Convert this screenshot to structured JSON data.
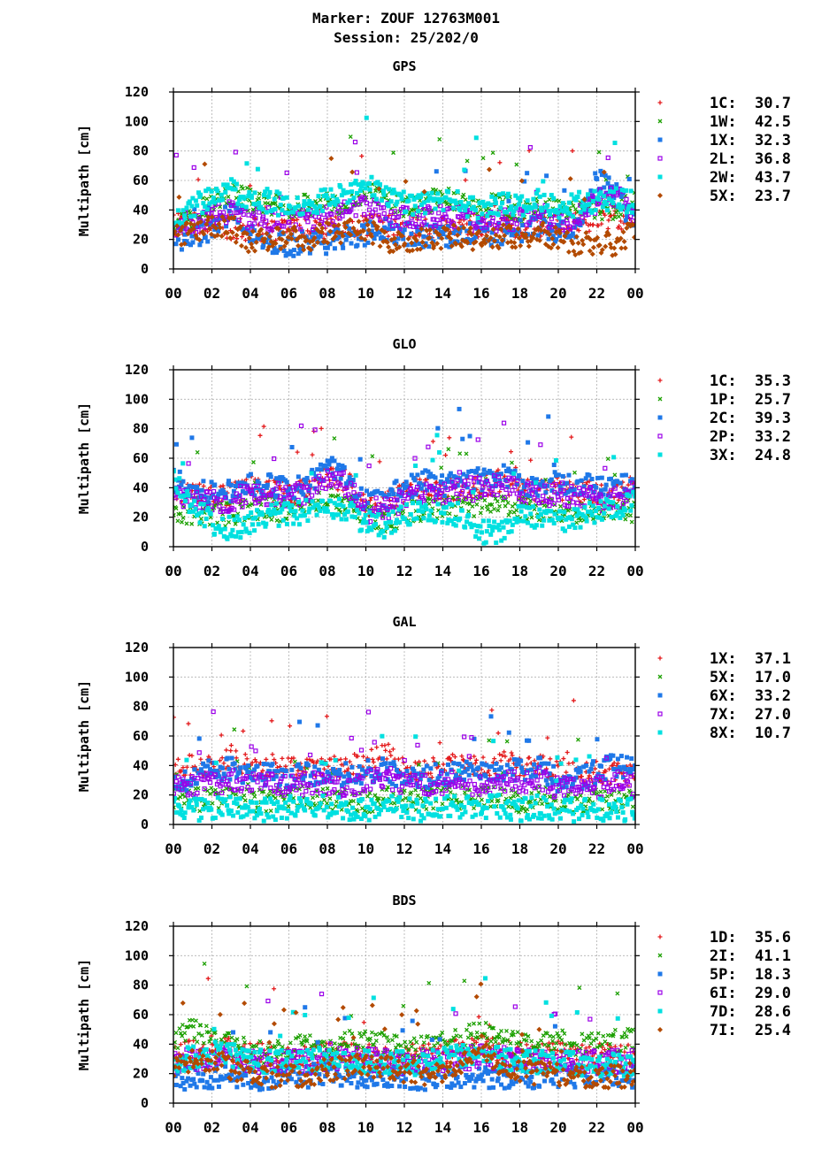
{
  "page": {
    "title_line1": "Marker: ZOUF 12763M001",
    "title_line2": "Session: 25/202/0"
  },
  "chart_data": [
    {
      "type": "scatter",
      "title": "GPS",
      "ylabel": "Multipath [cm]",
      "xlabel": "",
      "xlim": [
        0,
        24
      ],
      "ylim": [
        0,
        120
      ],
      "x_ticks": [
        "00",
        "02",
        "04",
        "06",
        "08",
        "10",
        "12",
        "14",
        "16",
        "18",
        "20",
        "22",
        "00"
      ],
      "y_ticks": [
        0,
        20,
        40,
        60,
        80,
        100,
        120
      ],
      "grid": true,
      "legend_position": "right",
      "series": [
        {
          "name": "1C",
          "legend_value": "30.7",
          "color": "#e41a1c",
          "marker": "+",
          "base": [
            30,
            30,
            30,
            28,
            27,
            27,
            28,
            28,
            28,
            29,
            30,
            30,
            29,
            28,
            30,
            30,
            29,
            28,
            30,
            30,
            31,
            30,
            34,
            35,
            34
          ]
        },
        {
          "name": "1W",
          "legend_value": "42.5",
          "color": "#1ca000",
          "marker": "x",
          "base": [
            28,
            34,
            46,
            52,
            46,
            44,
            42,
            44,
            46,
            44,
            52,
            46,
            42,
            44,
            48,
            44,
            42,
            44,
            40,
            42,
            40,
            40,
            40,
            42,
            44
          ]
        },
        {
          "name": "1X",
          "legend_value": "32.3",
          "color": "#1f78e8",
          "marker": "square",
          "base": [
            22,
            20,
            26,
            40,
            22,
            18,
            16,
            18,
            18,
            22,
            24,
            26,
            24,
            22,
            22,
            22,
            24,
            24,
            26,
            30,
            24,
            30,
            60,
            52,
            30
          ]
        },
        {
          "name": "2L",
          "legend_value": "36.8",
          "color": "#9b00e8",
          "marker": "open-square",
          "base": [
            30,
            32,
            36,
            38,
            34,
            34,
            34,
            34,
            36,
            38,
            42,
            38,
            34,
            34,
            36,
            34,
            32,
            34,
            34,
            38,
            32,
            36,
            46,
            50,
            38
          ]
        },
        {
          "name": "2W",
          "legend_value": "43.7",
          "color": "#00e0e0",
          "marker": "square",
          "base": [
            32,
            42,
            50,
            54,
            48,
            46,
            42,
            44,
            48,
            50,
            56,
            52,
            44,
            44,
            48,
            44,
            42,
            44,
            42,
            46,
            42,
            44,
            46,
            48,
            44
          ]
        },
        {
          "name": "5X",
          "legend_value": "23.7",
          "color": "#b34a00",
          "marker": "diamond",
          "base": [
            22,
            24,
            30,
            28,
            18,
            20,
            22,
            20,
            24,
            26,
            26,
            20,
            18,
            20,
            22,
            22,
            20,
            22,
            22,
            24,
            20,
            16,
            18,
            16,
            28
          ]
        }
      ]
    },
    {
      "type": "scatter",
      "title": "GLO",
      "ylabel": "Multipath [cm]",
      "xlabel": "",
      "xlim": [
        0,
        24
      ],
      "ylim": [
        0,
        120
      ],
      "x_ticks": [
        "00",
        "02",
        "04",
        "06",
        "08",
        "10",
        "12",
        "14",
        "16",
        "18",
        "20",
        "22",
        "00"
      ],
      "y_ticks": [
        0,
        20,
        40,
        60,
        80,
        100,
        120
      ],
      "grid": true,
      "legend_position": "right",
      "series": [
        {
          "name": "1C",
          "legend_value": "35.3",
          "color": "#e41a1c",
          "marker": "+",
          "base": [
            40,
            36,
            34,
            36,
            40,
            38,
            36,
            38,
            48,
            44,
            28,
            30,
            36,
            40,
            38,
            40,
            42,
            44,
            40,
            38,
            40,
            38,
            36,
            36,
            40
          ]
        },
        {
          "name": "1P",
          "legend_value": "25.7",
          "color": "#1ca000",
          "marker": "x",
          "base": [
            24,
            22,
            22,
            22,
            26,
            26,
            24,
            26,
            34,
            30,
            20,
            18,
            22,
            26,
            26,
            26,
            28,
            28,
            26,
            26,
            24,
            22,
            24,
            24,
            24
          ]
        },
        {
          "name": "2C",
          "legend_value": "39.3",
          "color": "#1f78e8",
          "marker": "square",
          "base": [
            46,
            40,
            36,
            38,
            42,
            42,
            40,
            42,
            54,
            48,
            30,
            32,
            40,
            44,
            42,
            44,
            46,
            48,
            44,
            40,
            44,
            42,
            40,
            40,
            44
          ]
        },
        {
          "name": "2P",
          "legend_value": "33.2",
          "color": "#9b00e8",
          "marker": "open-square",
          "base": [
            36,
            32,
            30,
            32,
            36,
            36,
            34,
            36,
            48,
            42,
            24,
            26,
            32,
            38,
            36,
            38,
            40,
            42,
            38,
            34,
            36,
            34,
            32,
            32,
            36
          ]
        },
        {
          "name": "3X",
          "legend_value": "24.8",
          "color": "#00e0e0",
          "marker": "square",
          "base": [
            44,
            28,
            16,
            12,
            16,
            22,
            22,
            24,
            26,
            24,
            16,
            14,
            22,
            26,
            22,
            22,
            10,
            10,
            22,
            20,
            16,
            20,
            24,
            26,
            32
          ]
        }
      ]
    },
    {
      "type": "scatter",
      "title": "GAL",
      "ylabel": "Multipath [cm]",
      "xlabel": "",
      "xlim": [
        0,
        24
      ],
      "ylim": [
        0,
        120
      ],
      "x_ticks": [
        "00",
        "02",
        "04",
        "06",
        "08",
        "10",
        "12",
        "14",
        "16",
        "18",
        "20",
        "22",
        "00"
      ],
      "y_ticks": [
        0,
        20,
        40,
        60,
        80,
        100,
        120
      ],
      "grid": true,
      "legend_position": "right",
      "series": [
        {
          "name": "1X",
          "legend_value": "37.1",
          "color": "#e41a1c",
          "marker": "+",
          "base": [
            36,
            40,
            40,
            46,
            38,
            40,
            38,
            40,
            40,
            40,
            40,
            50,
            36,
            38,
            40,
            40,
            40,
            42,
            40,
            40,
            38,
            36,
            36,
            34,
            32
          ]
        },
        {
          "name": "5X",
          "legend_value": "17.0",
          "color": "#1ca000",
          "marker": "x",
          "base": [
            16,
            16,
            18,
            18,
            16,
            16,
            18,
            18,
            18,
            16,
            16,
            18,
            16,
            16,
            18,
            18,
            18,
            18,
            16,
            18,
            16,
            16,
            16,
            16,
            16
          ]
        },
        {
          "name": "6X",
          "legend_value": "33.2",
          "color": "#1f78e8",
          "marker": "square",
          "base": [
            28,
            32,
            36,
            38,
            32,
            34,
            32,
            34,
            36,
            34,
            36,
            38,
            30,
            32,
            34,
            36,
            36,
            38,
            36,
            38,
            30,
            30,
            36,
            40,
            36
          ]
        },
        {
          "name": "7X",
          "legend_value": "27.0",
          "color": "#9b00e8",
          "marker": "open-square",
          "base": [
            24,
            26,
            28,
            30,
            26,
            28,
            26,
            28,
            28,
            26,
            28,
            32,
            26,
            26,
            28,
            28,
            28,
            30,
            28,
            32,
            24,
            24,
            26,
            28,
            26
          ]
        },
        {
          "name": "8X",
          "legend_value": "10.7",
          "color": "#00e0e0",
          "marker": "square",
          "base": [
            10,
            10,
            12,
            12,
            10,
            10,
            12,
            12,
            12,
            10,
            10,
            12,
            10,
            10,
            12,
            12,
            12,
            12,
            10,
            12,
            10,
            10,
            10,
            10,
            10
          ]
        }
      ]
    },
    {
      "type": "scatter",
      "title": "BDS",
      "ylabel": "Multipath [cm]",
      "xlabel": "",
      "xlim": [
        0,
        24
      ],
      "ylim": [
        0,
        120
      ],
      "x_ticks": [
        "00",
        "02",
        "04",
        "06",
        "08",
        "10",
        "12",
        "14",
        "16",
        "18",
        "20",
        "22",
        "00"
      ],
      "y_ticks": [
        0,
        20,
        40,
        60,
        80,
        100,
        120
      ],
      "grid": true,
      "legend_position": "right",
      "series": [
        {
          "name": "1D",
          "legend_value": "35.6",
          "color": "#e41a1c",
          "marker": "+",
          "base": [
            30,
            36,
            38,
            36,
            34,
            32,
            30,
            32,
            34,
            36,
            34,
            32,
            32,
            32,
            34,
            36,
            40,
            36,
            34,
            32,
            34,
            32,
            32,
            34,
            32
          ]
        },
        {
          "name": "2I",
          "legend_value": "41.1",
          "color": "#1ca000",
          "marker": "x",
          "base": [
            44,
            50,
            44,
            40,
            36,
            34,
            36,
            40,
            40,
            42,
            42,
            40,
            38,
            38,
            40,
            44,
            48,
            44,
            40,
            40,
            42,
            40,
            40,
            42,
            44
          ]
        },
        {
          "name": "5P",
          "legend_value": "18.3",
          "color": "#1f78e8",
          "marker": "square",
          "base": [
            16,
            18,
            18,
            18,
            18,
            16,
            18,
            18,
            20,
            18,
            18,
            18,
            18,
            16,
            18,
            18,
            18,
            18,
            18,
            18,
            18,
            18,
            18,
            18,
            18
          ]
        },
        {
          "name": "6I",
          "legend_value": "29.0",
          "color": "#9b00e8",
          "marker": "open-square",
          "base": [
            26,
            30,
            30,
            30,
            28,
            28,
            28,
            28,
            30,
            30,
            30,
            28,
            28,
            28,
            28,
            30,
            32,
            30,
            30,
            28,
            28,
            28,
            28,
            28,
            28
          ]
        },
        {
          "name": "7D",
          "legend_value": "28.6",
          "color": "#00e0e0",
          "marker": "square",
          "base": [
            26,
            32,
            34,
            32,
            30,
            28,
            28,
            30,
            30,
            30,
            28,
            28,
            28,
            26,
            30,
            32,
            36,
            30,
            30,
            28,
            28,
            26,
            26,
            26,
            26
          ]
        },
        {
          "name": "7I",
          "legend_value": "25.4",
          "color": "#b34a00",
          "marker": "diamond",
          "base": [
            22,
            28,
            30,
            24,
            20,
            18,
            18,
            20,
            22,
            24,
            26,
            24,
            22,
            20,
            22,
            26,
            40,
            26,
            22,
            20,
            20,
            18,
            18,
            18,
            20
          ]
        }
      ]
    }
  ]
}
